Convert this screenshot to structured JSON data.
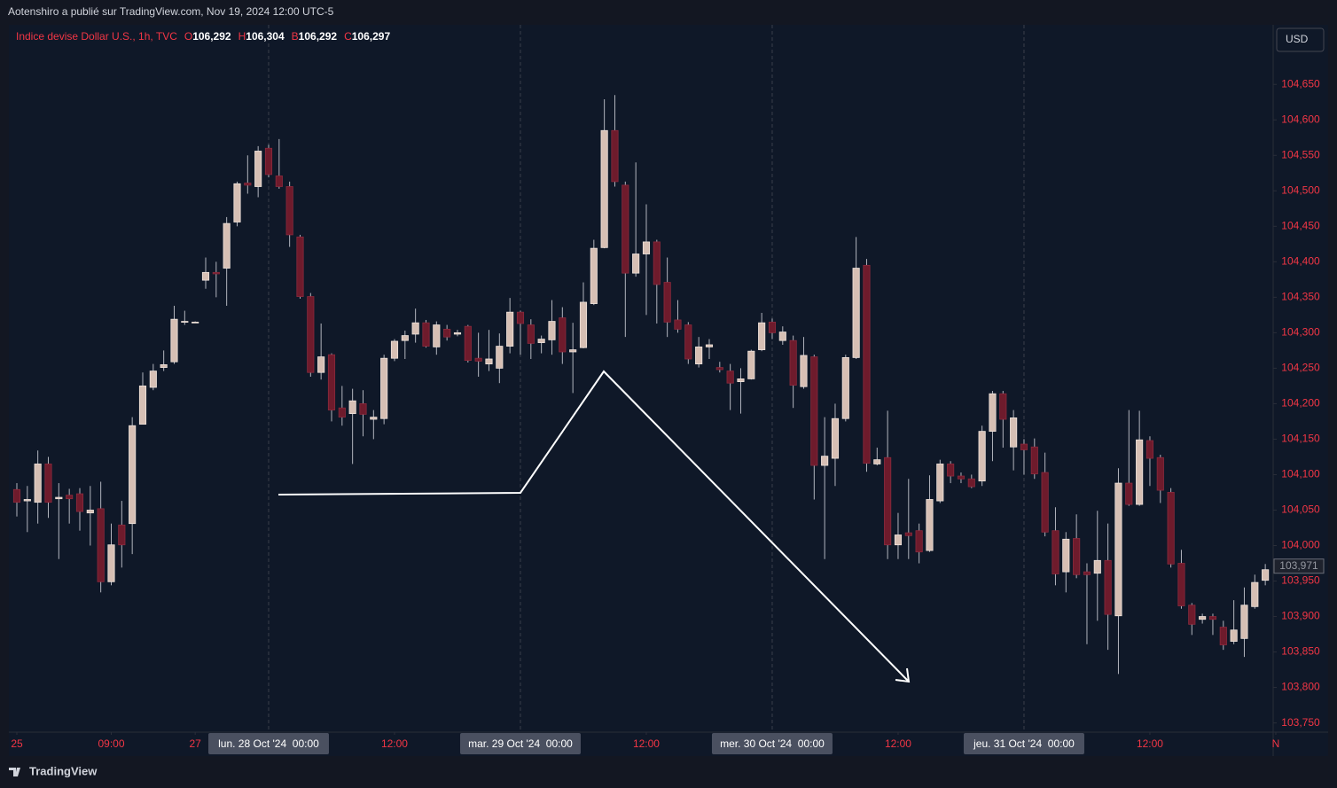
{
  "header": {
    "publisher": "Aotenshiro a publié sur TradingView.com, Nov 19, 2024 12:00 UTC-5"
  },
  "footer": {
    "brand": "TradingView"
  },
  "currency_button": "USD",
  "legend": {
    "title": "Indice devise Dollar U.S., 1h, TVC",
    "fields": [
      {
        "key": "O",
        "value": "106,292"
      },
      {
        "key": "H",
        "value": "106,304"
      },
      {
        "key": "B",
        "value": "106,292"
      },
      {
        "key": "C",
        "value": "106,297"
      }
    ]
  },
  "chart_data": {
    "type": "candlestick",
    "up_color": "#d6bfb4",
    "down_color": "#6e1b2c",
    "wick_color": "#b2b5be",
    "open": [
      104.079,
      104.063,
      104.061,
      104.115,
      104.066,
      104.071,
      104.073,
      104.046,
      104.052,
      103.949,
      104.029,
      104.031,
      104.171,
      104.223,
      104.251,
      104.259,
      104.315,
      104.315,
      104.374,
      104.385,
      104.391,
      104.456,
      104.511,
      104.506,
      104.56,
      104.521,
      104.506,
      104.435,
      104.351,
      104.244,
      104.269,
      104.194,
      104.186,
      104.2,
      104.178,
      104.179,
      104.264,
      104.289,
      104.298,
      104.314,
      104.28,
      104.305,
      104.298,
      104.309,
      104.264,
      104.256,
      104.25,
      104.281,
      104.329,
      104.311,
      104.286,
      104.29,
      104.321,
      104.273,
      104.279,
      104.341,
      104.42,
      104.585,
      104.508,
      104.384,
      104.411,
      104.428,
      104.371,
      104.318,
      104.311,
      104.256,
      104.28,
      104.251,
      104.246,
      104.231,
      104.235,
      104.276,
      104.315,
      104.289,
      104.289,
      104.224,
      104.266,
      104.113,
      104.123,
      104.179,
      104.265,
      104.395,
      104.115,
      104.124,
      104.001,
      104.018,
      104.021,
      103.993,
      104.063,
      104.115,
      104.098,
      104.094,
      104.091,
      104.161,
      104.214,
      104.139,
      104.143,
      104.139,
      104.103,
      104.021,
      103.963,
      104.01,
      103.963,
      103.961,
      103.979,
      103.901,
      104.088,
      104.058,
      104.148,
      104.124,
      104.075,
      103.975,
      103.916,
      103.896,
      103.9,
      103.885,
      103.865,
      103.869,
      103.914,
      103.951
    ],
    "high": [
      104.088,
      104.084,
      104.134,
      104.125,
      104.088,
      104.08,
      104.081,
      104.084,
      104.09,
      104.031,
      104.063,
      104.181,
      104.244,
      104.256,
      104.275,
      104.338,
      104.331,
      104.316,
      104.406,
      104.4,
      104.463,
      104.513,
      104.55,
      104.563,
      104.565,
      104.573,
      104.513,
      104.438,
      104.356,
      104.313,
      104.271,
      104.225,
      104.221,
      104.219,
      104.191,
      104.269,
      104.291,
      104.303,
      104.334,
      104.318,
      104.316,
      104.311,
      104.304,
      104.311,
      104.3,
      104.304,
      104.299,
      104.349,
      104.331,
      104.319,
      104.296,
      104.346,
      104.336,
      104.314,
      104.371,
      104.431,
      104.629,
      104.635,
      104.513,
      104.54,
      104.481,
      104.431,
      104.406,
      104.346,
      104.315,
      104.294,
      104.291,
      104.259,
      104.256,
      104.25,
      104.276,
      104.328,
      104.32,
      104.309,
      104.296,
      104.294,
      104.269,
      104.181,
      104.2,
      104.269,
      104.435,
      104.404,
      104.138,
      104.19,
      104.046,
      104.094,
      104.031,
      104.099,
      104.121,
      104.119,
      104.103,
      104.1,
      104.169,
      104.218,
      104.218,
      104.191,
      104.15,
      104.151,
      104.131,
      104.054,
      104.019,
      104.044,
      103.975,
      104.049,
      104.031,
      104.109,
      104.191,
      104.19,
      104.154,
      104.128,
      104.081,
      103.994,
      103.919,
      103.904,
      103.904,
      103.894,
      103.923,
      103.941,
      103.959,
      103.974
    ],
    "low": [
      104.041,
      104.019,
      104.031,
      104.039,
      103.981,
      104.031,
      104.021,
      104.0,
      103.934,
      103.944,
      103.969,
      103.988,
      104.171,
      104.219,
      104.246,
      104.256,
      104.311,
      104.314,
      104.362,
      104.35,
      104.338,
      104.45,
      104.496,
      104.491,
      104.519,
      104.503,
      104.421,
      104.348,
      104.238,
      104.234,
      104.175,
      104.169,
      104.115,
      104.154,
      104.15,
      104.171,
      104.26,
      104.263,
      104.286,
      104.279,
      104.269,
      104.289,
      104.295,
      104.258,
      104.238,
      104.246,
      104.229,
      104.271,
      104.269,
      104.263,
      104.271,
      104.269,
      104.256,
      104.215,
      104.278,
      104.339,
      104.419,
      104.506,
      104.294,
      104.379,
      104.325,
      104.313,
      104.294,
      104.3,
      104.256,
      104.251,
      104.263,
      104.244,
      104.191,
      104.186,
      104.234,
      104.274,
      104.291,
      104.283,
      104.194,
      104.221,
      104.065,
      103.981,
      104.084,
      104.175,
      104.263,
      104.104,
      104.113,
      103.981,
      103.981,
      103.981,
      103.975,
      103.991,
      104.06,
      104.088,
      104.088,
      104.081,
      104.084,
      104.119,
      104.138,
      104.106,
      104.1,
      104.094,
      104.013,
      103.944,
      103.934,
      103.954,
      103.861,
      103.894,
      103.853,
      103.819,
      104.056,
      104.056,
      104.084,
      104.06,
      103.969,
      103.911,
      103.874,
      103.89,
      103.874,
      103.853,
      103.861,
      103.843,
      103.911,
      103.944
    ],
    "close": [
      104.061,
      104.065,
      104.115,
      104.061,
      104.068,
      104.066,
      104.048,
      104.05,
      103.949,
      104.001,
      104.001,
      104.169,
      104.225,
      104.246,
      104.255,
      104.319,
      104.316,
      104.315,
      104.385,
      104.383,
      104.454,
      104.51,
      104.508,
      104.556,
      104.523,
      104.506,
      104.438,
      104.351,
      104.244,
      104.266,
      104.191,
      104.181,
      104.204,
      104.185,
      104.181,
      104.264,
      104.288,
      104.296,
      104.314,
      104.281,
      104.311,
      104.294,
      104.3,
      104.261,
      104.26,
      104.263,
      104.281,
      104.329,
      104.313,
      104.285,
      104.291,
      104.316,
      104.273,
      104.276,
      104.343,
      104.419,
      104.585,
      104.513,
      104.384,
      104.411,
      104.428,
      104.368,
      104.315,
      104.305,
      104.263,
      104.28,
      104.283,
      104.248,
      104.229,
      104.235,
      104.274,
      104.314,
      104.3,
      104.301,
      104.226,
      104.268,
      104.113,
      104.126,
      104.179,
      104.265,
      104.391,
      104.116,
      104.121,
      104.001,
      104.015,
      104.014,
      103.991,
      104.065,
      104.115,
      104.098,
      104.094,
      104.083,
      104.161,
      104.214,
      104.178,
      104.18,
      104.135,
      104.101,
      104.019,
      103.96,
      104.009,
      103.959,
      103.959,
      103.979,
      103.903,
      104.088,
      104.058,
      104.149,
      104.123,
      104.078,
      103.974,
      103.915,
      103.889,
      103.9,
      103.896,
      103.86,
      103.881,
      103.916,
      103.948,
      103.966
    ],
    "last_price": {
      "value": 103.971,
      "label": "103,971"
    },
    "xlim": [
      -0.76,
      119.75
    ],
    "xticks": [
      {
        "value": 0,
        "label": "25"
      },
      {
        "value": 9,
        "label": "09:00"
      },
      {
        "value": 17,
        "label": "27"
      },
      {
        "value": 24,
        "label": "lun. 28 Oct '24  00:00"
      },
      {
        "value": 36,
        "label": "12:00"
      },
      {
        "value": 48,
        "label": "mar. 29 Oct '24  00:00"
      },
      {
        "value": 60,
        "label": "12:00"
      },
      {
        "value": 72,
        "label": "mer. 30 Oct '24  00:00"
      },
      {
        "value": 84,
        "label": "12:00"
      },
      {
        "value": 96,
        "label": "jeu. 31 Oct '24  00:00"
      },
      {
        "value": 108,
        "label": "12:00"
      },
      {
        "value": 120,
        "label": "N"
      }
    ],
    "ylim": [
      103.737,
      104.734
    ],
    "yticks": [
      {
        "value": 104.65,
        "label": "104,650"
      },
      {
        "value": 104.6,
        "label": "104,600"
      },
      {
        "value": 104.55,
        "label": "104,550"
      },
      {
        "value": 104.5,
        "label": "104,500"
      },
      {
        "value": 104.45,
        "label": "104,450"
      },
      {
        "value": 104.4,
        "label": "104,400"
      },
      {
        "value": 104.35,
        "label": "104,350"
      },
      {
        "value": 104.3,
        "label": "104,300"
      },
      {
        "value": 104.25,
        "label": "104,250"
      },
      {
        "value": 104.2,
        "label": "104,200"
      },
      {
        "value": 104.15,
        "label": "104,150"
      },
      {
        "value": 104.1,
        "label": "104,100"
      },
      {
        "value": 104.05,
        "label": "104,050"
      },
      {
        "value": 104.0,
        "label": "104,000"
      },
      {
        "value": 103.95,
        "label": "103,950"
      },
      {
        "value": 103.9,
        "label": "103,900"
      },
      {
        "value": 103.85,
        "label": "103,850"
      },
      {
        "value": 103.8,
        "label": "103,800"
      },
      {
        "value": 103.75,
        "label": "103,750"
      }
    ]
  }
}
